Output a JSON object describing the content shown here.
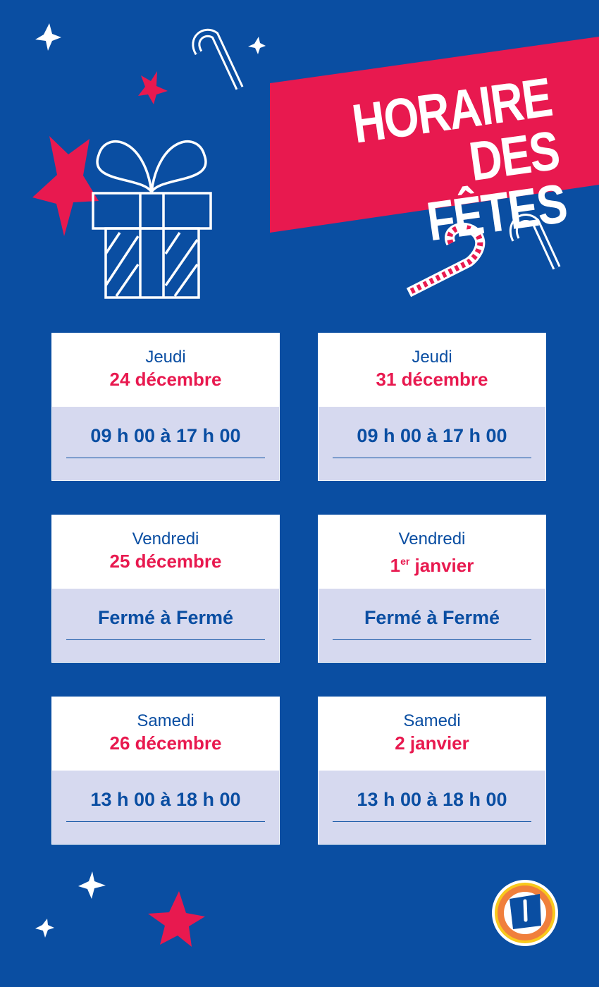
{
  "title": {
    "line1": "HORAIRE",
    "line2": "DES FÊTES"
  },
  "colors": {
    "background": "#0a4ea2",
    "accent": "#e8194f",
    "panel": "#d6d9ef"
  },
  "schedule": [
    {
      "day": "Jeudi",
      "date": "24 décembre",
      "hours": "09 h 00 à 17 h 00"
    },
    {
      "day": "Jeudi",
      "date": "31 décembre",
      "hours": "09 h 00 à 17 h 00"
    },
    {
      "day": "Vendredi",
      "date": "25 décembre",
      "hours": "Fermé à Fermé"
    },
    {
      "day": "Vendredi",
      "date_num": "1",
      "date_sup": "er",
      "date_rest": " janvier",
      "hours": "Fermé à Fermé"
    },
    {
      "day": "Samedi",
      "date": "26 décembre",
      "hours": "13 h 00 à 18 h 00"
    },
    {
      "day": "Samedi",
      "date": "2 janvier",
      "hours": "13 h 00 à 18 h 00"
    }
  ],
  "logo": {
    "letter": "U"
  },
  "icons": [
    "star-icon",
    "candy-cane-icon",
    "gift-icon",
    "uniprix-logo"
  ]
}
